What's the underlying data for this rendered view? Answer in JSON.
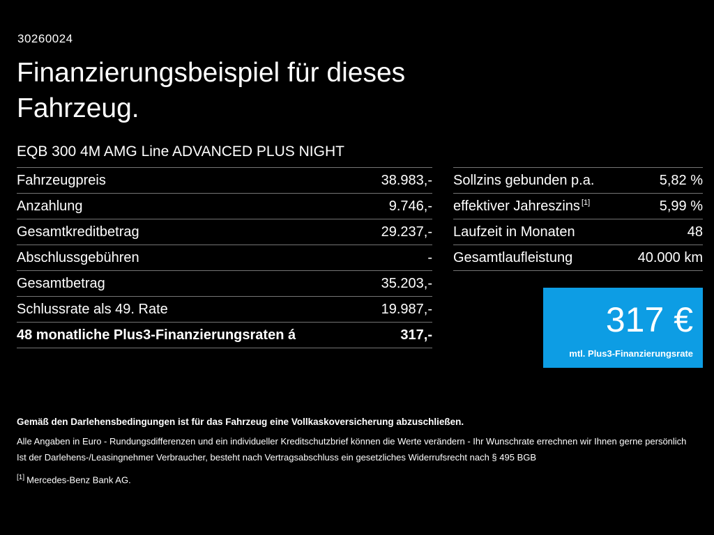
{
  "page": {
    "background": "#000000",
    "text_color": "#ffffff",
    "accent_blue": "#0d9de4",
    "divider_color": "#757575"
  },
  "header": {
    "reference_number": "30260024",
    "title": "Finanzierungsbeispiel für dieses\nFahrzeug.",
    "vehicle_name": "EQB 300 4M AMG Line ADVANCED PLUS NIGHT"
  },
  "financing_table": {
    "rows": [
      {
        "label": "Fahrzeugpreis",
        "value": "38.983,-"
      },
      {
        "label": "Anzahlung",
        "value": "9.746,-"
      },
      {
        "label": "Gesamtkreditbetrag",
        "value": "29.237,-"
      },
      {
        "label": "Abschlussgebühren",
        "value": "-"
      },
      {
        "label": "Gesamtbetrag",
        "value": "35.203,-"
      },
      {
        "label": "Schlussrate als 49. Rate",
        "value": "19.987,-"
      },
      {
        "label": "48 monatliche Plus3-Finanzierungsraten á",
        "value": "317,-"
      }
    ]
  },
  "conditions_table": {
    "rows": [
      {
        "label": "Sollzins gebunden p.a.",
        "sup": "",
        "value": "5,82 %"
      },
      {
        "label": "effektiver Jahreszins",
        "sup": "[1]",
        "value": "5,99 %"
      },
      {
        "label": "Laufzeit in Monaten",
        "sup": "",
        "value": "48"
      },
      {
        "label": "Gesamtlaufleistung",
        "sup": "",
        "value": "40.000 km"
      }
    ]
  },
  "rate_box": {
    "amount": "317 €",
    "caption": "mtl. Plus3-Finanzierungsrate"
  },
  "footer": {
    "insurance_note": "Gemäß den Darlehensbedingungen ist für das Fahrzeug eine Vollkaskoversicherung abzuschließen.",
    "note_line1": "Alle Angaben in Euro - Rundungsdifferenzen und ein individueller Kreditschutzbrief können die Werte verändern - Ihr Wunschrate errechnen wir Ihnen gerne persönlich",
    "note_line2": "Ist der Darlehens-/Leasingnehmer Verbraucher, besteht nach Vertragsabschluss ein gesetzliches Widerrufsrecht nach § 495 BGB",
    "footnote_marker": "[1]",
    "footnote_text": "Mercedes-Benz Bank AG."
  }
}
